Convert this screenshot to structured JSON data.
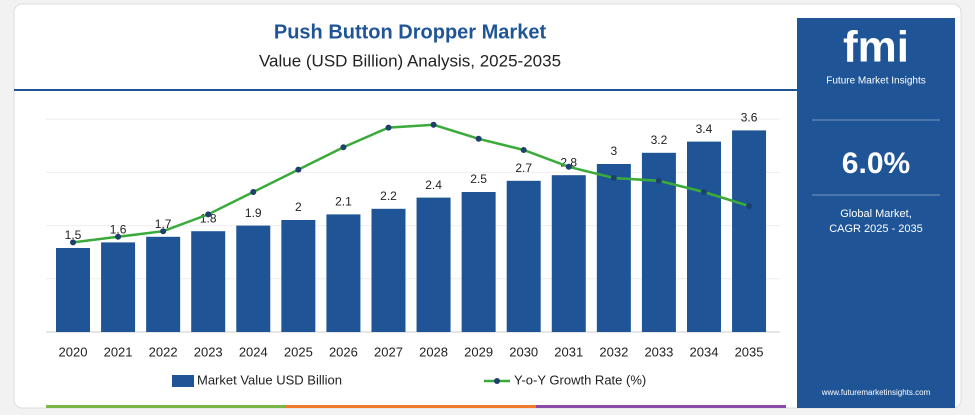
{
  "chart_data": {
    "type": "bar_line",
    "title": "Push Button Dropper Market",
    "subtitle": "Value (USD Billion) Analysis, 2025-2035",
    "categories": [
      "2020",
      "2021",
      "2022",
      "2023",
      "2024",
      "2025",
      "2026",
      "2027",
      "2028",
      "2029",
      "2030",
      "2031",
      "2032",
      "2033",
      "2034",
      "2035"
    ],
    "series": [
      {
        "name": "Market Value USD Billion",
        "color": "#1f5596",
        "type": "bar",
        "values": [
          1.5,
          1.6,
          1.7,
          1.8,
          1.9,
          2.0,
          2.1,
          2.2,
          2.4,
          2.5,
          2.7,
          2.8,
          3.0,
          3.2,
          3.4,
          3.6
        ]
      },
      {
        "name": "Y-o-Y Growth Rate (%)",
        "color": "#3aab3a",
        "type": "line",
        "axis": "y2",
        "values": [
          3.2,
          3.4,
          3.6,
          4.2,
          5.0,
          5.8,
          6.6,
          7.3,
          7.4,
          6.9,
          6.5,
          5.9,
          5.5,
          5.4,
          5.0,
          4.5
        ]
      }
    ],
    "ylim": [
      0,
      4
    ],
    "y2lim": [
      0,
      8
    ]
  },
  "sidebar": {
    "logo": "fmi",
    "brand": "Future Market Insights",
    "cagr": "6.0%",
    "cagr_label_1": "Global Market,",
    "cagr_label_2": "CAGR 2025 - 2035",
    "website": "www.futuremarketinsights.com"
  }
}
